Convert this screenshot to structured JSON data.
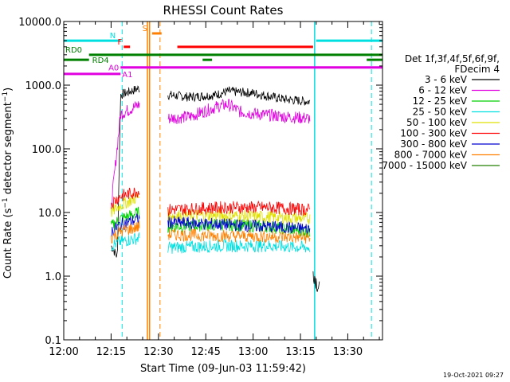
{
  "chart_data": {
    "type": "line",
    "title": "RHESSI Count Rates",
    "xlabel": "Start Time (09-Jun-03 11:59:42)",
    "ylabel": "Count Rate (s⁻¹ detector segment⁻¹)",
    "ylabel_parts": {
      "main": "Count Rate (s",
      "sup1": "−1",
      "mid": " detector segment",
      "sup2": "−1",
      "end": ")"
    },
    "yscale": "log",
    "ylim": [
      0.1,
      10000
    ],
    "xlim_minutes": [
      0,
      101
    ],
    "x_ticks": [
      {
        "m": 0,
        "label": "12:00"
      },
      {
        "m": 15,
        "label": "12:15"
      },
      {
        "m": 30,
        "label": "12:30"
      },
      {
        "m": 45,
        "label": "12:45"
      },
      {
        "m": 60,
        "label": "13:00"
      },
      {
        "m": 75,
        "label": "13:15"
      },
      {
        "m": 90,
        "label": "13:30"
      }
    ],
    "y_ticks": [
      {
        "v": 0.1,
        "label": "0.1"
      },
      {
        "v": 1,
        "label": "1.0"
      },
      {
        "v": 10,
        "label": "10.0"
      },
      {
        "v": 100,
        "label": "100.0"
      },
      {
        "v": 1000,
        "label": "1000.0"
      },
      {
        "v": 10000,
        "label": "10000.0"
      }
    ],
    "legend_header": [
      "Det 1f,3f,4f,5f,6f,9f,",
      "FDecim 4"
    ],
    "series": [
      {
        "name": "3 - 6 keV",
        "color": "#000000",
        "seg1": [
          [
            15,
            3
          ],
          [
            17,
            2
          ],
          [
            18,
            700
          ],
          [
            24,
            900
          ]
        ],
        "seg2": [
          [
            33,
            700
          ],
          [
            40,
            650
          ],
          [
            48,
            700
          ],
          [
            52,
            800
          ],
          [
            60,
            750
          ],
          [
            70,
            600
          ],
          [
            78,
            550
          ]
        ],
        "tail": [
          [
            79,
            1.2
          ],
          [
            81,
            0.6
          ]
        ]
      },
      {
        "name": "6 - 12 keV",
        "color": "#e000e0",
        "seg1": [
          [
            15,
            12
          ],
          [
            18,
            350
          ],
          [
            24,
            500
          ]
        ],
        "seg2": [
          [
            33,
            300
          ],
          [
            40,
            320
          ],
          [
            48,
            450
          ],
          [
            52,
            500
          ],
          [
            56,
            380
          ],
          [
            62,
            350
          ],
          [
            70,
            320
          ],
          [
            78,
            300
          ]
        ],
        "tail": []
      },
      {
        "name": "12 - 25 keV",
        "color": "#00d000",
        "seg1": [
          [
            15,
            6
          ],
          [
            18,
            8
          ],
          [
            24,
            10
          ]
        ],
        "seg2": [
          [
            33,
            6
          ],
          [
            50,
            6.5
          ],
          [
            65,
            6
          ],
          [
            78,
            5
          ]
        ],
        "tail": []
      },
      {
        "name": "25 - 50 keV",
        "color": "#00e0e0",
        "seg1": [
          [
            15,
            3
          ],
          [
            18,
            3.5
          ],
          [
            24,
            4
          ]
        ],
        "seg2": [
          [
            33,
            2.8
          ],
          [
            50,
            3
          ],
          [
            65,
            3
          ],
          [
            78,
            2.8
          ]
        ],
        "tail": []
      },
      {
        "name": "50 - 100 keV",
        "color": "#e0e000",
        "seg1": [
          [
            15,
            10
          ],
          [
            18,
            13
          ],
          [
            24,
            18
          ]
        ],
        "seg2": [
          [
            33,
            9
          ],
          [
            50,
            9
          ],
          [
            65,
            8.5
          ],
          [
            78,
            8
          ]
        ],
        "tail": []
      },
      {
        "name": "100 - 300 keV",
        "color": "#ff0000",
        "seg1": [
          [
            15,
            14
          ],
          [
            18,
            18
          ],
          [
            24,
            22
          ]
        ],
        "seg2": [
          [
            33,
            11
          ],
          [
            50,
            12
          ],
          [
            65,
            12
          ],
          [
            78,
            11
          ]
        ],
        "tail": []
      },
      {
        "name": "300 - 800 keV",
        "color": "#0000d0",
        "seg1": [
          [
            15,
            5
          ],
          [
            18,
            6.5
          ],
          [
            24,
            8
          ]
        ],
        "seg2": [
          [
            33,
            7
          ],
          [
            50,
            6.5
          ],
          [
            65,
            6
          ],
          [
            78,
            5.5
          ]
        ],
        "tail": []
      },
      {
        "name": "800 - 7000 keV",
        "color": "#ff8000",
        "seg1": [
          [
            15,
            4
          ],
          [
            18,
            5
          ],
          [
            24,
            6
          ]
        ],
        "seg2": [
          [
            33,
            4.5
          ],
          [
            50,
            4.3
          ],
          [
            65,
            4.2
          ],
          [
            78,
            4
          ]
        ],
        "tail": []
      },
      {
        "name": "7000 - 15000 keV",
        "color": "#208000",
        "seg1": [],
        "seg2": [],
        "tail": []
      }
    ],
    "status_bars": [
      {
        "label": "N",
        "color": "#00e0e0",
        "y_value": 5000,
        "segments": [
          [
            0,
            18
          ],
          [
            80,
            101
          ]
        ]
      },
      {
        "label": "S",
        "color": "#ff8000",
        "y_value": 6500,
        "segments": [
          [
            28,
            31
          ]
        ]
      },
      {
        "label": "F",
        "color": "#ff0000",
        "y_value": 4000,
        "segments": [
          [
            19,
            21
          ],
          [
            36,
            79
          ]
        ]
      },
      {
        "label": "RD0",
        "color": "#008000",
        "y_value": 3000,
        "segments": [
          [
            8,
            101
          ]
        ]
      },
      {
        "label": "RD4",
        "color": "#008000",
        "y_value": 2500,
        "segments": [
          [
            0,
            8
          ],
          [
            44,
            47
          ],
          [
            96,
            101
          ]
        ]
      },
      {
        "label": "A0",
        "color": "#e000e0",
        "y_value": 1900,
        "segments": [
          [
            18,
            101
          ]
        ]
      },
      {
        "label": "A1",
        "color": "#e000e0",
        "y_value": 1500,
        "segments": [
          [
            0,
            18
          ]
        ]
      }
    ],
    "vlines": [
      {
        "m": 18.5,
        "color": "#00e0e0",
        "style": "dashed"
      },
      {
        "m": 26.5,
        "color": "#ff8000",
        "style": "solid"
      },
      {
        "m": 27.2,
        "color": "#ff8000",
        "style": "solid"
      },
      {
        "m": 30.5,
        "color": "#ff8000",
        "style": "dashed"
      },
      {
        "m": 79.5,
        "color": "#00e0e0",
        "style": "solid"
      },
      {
        "m": 97.5,
        "color": "#00e0e0",
        "style": "dashed"
      }
    ],
    "footer_date": "19-Oct-2021 09:27"
  }
}
